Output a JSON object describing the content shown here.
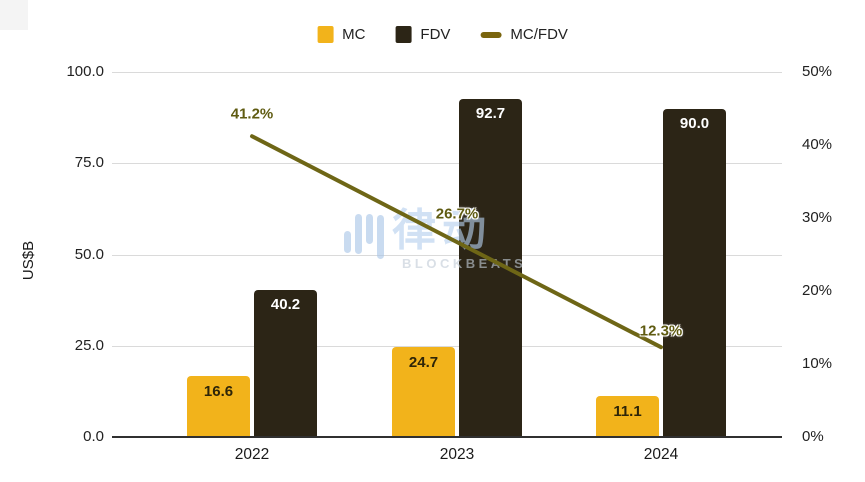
{
  "watermark": {
    "cn": "律动",
    "en": "BLOCKBEATS"
  },
  "legend": {
    "items": [
      {
        "label": "MC",
        "swatch": "square",
        "color": "#F2B31B"
      },
      {
        "label": "FDV",
        "swatch": "square",
        "color": "#2C2516"
      },
      {
        "label": "MC/FDV",
        "swatch": "line",
        "color": "#7A650E"
      }
    ]
  },
  "chart_data": {
    "type": "combo-bar-line",
    "title": "",
    "categories": [
      "2022",
      "2023",
      "2024"
    ],
    "series": [
      {
        "name": "MC",
        "type": "bar",
        "axis": "left",
        "color": "#F2B31B",
        "values": [
          16.6,
          24.7,
          11.1
        ],
        "labels": [
          "16.6",
          "24.7",
          "11.1"
        ],
        "label_color": "#2E2508"
      },
      {
        "name": "FDV",
        "type": "bar",
        "axis": "left",
        "color": "#2C2516",
        "values": [
          40.2,
          92.7,
          90.0
        ],
        "labels": [
          "40.2",
          "92.7",
          "90.0"
        ],
        "label_color": "#FFFFFF"
      },
      {
        "name": "MC/FDV",
        "type": "line",
        "axis": "right",
        "color": "#6E6616",
        "values": [
          41.2,
          26.7,
          12.3
        ],
        "labels": [
          "41.2%",
          "26.7%",
          "12.3%"
        ],
        "label_color": "#5F5B11"
      }
    ],
    "left_axis": {
      "title": "US$B",
      "min": 0,
      "max": 100,
      "ticks": [
        {
          "value": 100,
          "label": "100.0"
        },
        {
          "value": 75,
          "label": "75.0"
        },
        {
          "value": 50,
          "label": "50.0"
        },
        {
          "value": 25,
          "label": "25.0"
        },
        {
          "value": 0,
          "label": "0.0"
        }
      ]
    },
    "right_axis": {
      "title": "",
      "min": 0,
      "max": 50,
      "ticks": [
        {
          "value": 50,
          "label": "50%"
        },
        {
          "value": 40,
          "label": "40%"
        },
        {
          "value": 30,
          "label": "30%"
        },
        {
          "value": 20,
          "label": "20%"
        },
        {
          "value": 10,
          "label": "10%"
        },
        {
          "value": 0,
          "label": "0%"
        }
      ]
    },
    "grid": true,
    "legend_position": "top"
  },
  "colors": {
    "background": "#FFFFFF",
    "grid": "#DADADA",
    "baseline": "#303030",
    "axis_text": "#212121",
    "mc": "#F2B31B",
    "fdv": "#2C2516",
    "ratio_line": "#6E6616"
  }
}
